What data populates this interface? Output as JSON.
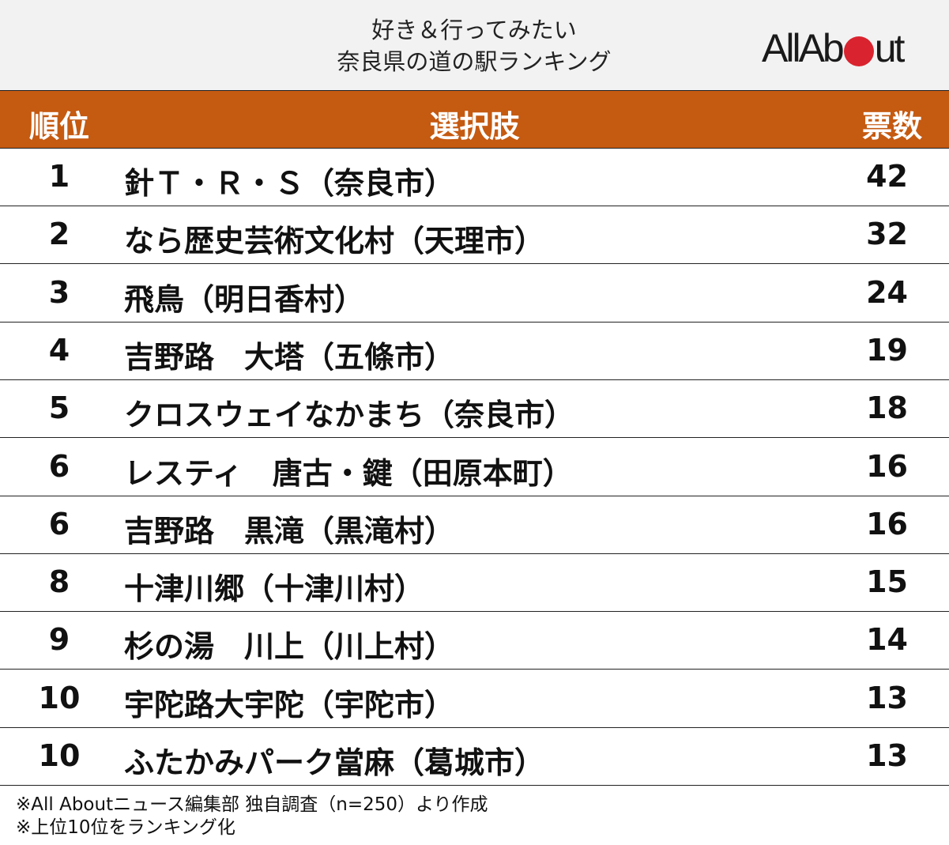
{
  "header": {
    "title_line1": "好き＆行ってみたい",
    "title_line2": "奈良県の道の駅ランキング",
    "logo": "All About"
  },
  "colors": {
    "header_bg": "#c55a11",
    "logo_dot": "#d9232e",
    "top_bg": "#f2f2f2"
  },
  "chart_data": {
    "type": "table",
    "columns": [
      "順位",
      "選択肢",
      "票数"
    ],
    "rows": [
      {
        "rank": "1",
        "name": "針Ｔ・Ｒ・Ｓ（奈良市）",
        "votes": "42"
      },
      {
        "rank": "2",
        "name": "なら歴史芸術文化村（天理市）",
        "votes": "32"
      },
      {
        "rank": "3",
        "name": "飛鳥（明日香村）",
        "votes": "24"
      },
      {
        "rank": "4",
        "name": "吉野路　大塔（五條市）",
        "votes": "19"
      },
      {
        "rank": "5",
        "name": "クロスウェイなかまち（奈良市）",
        "votes": "18"
      },
      {
        "rank": "6",
        "name": "レスティ　唐古・鍵（田原本町）",
        "votes": "16"
      },
      {
        "rank": "6",
        "name": "吉野路　黒滝（黒滝村）",
        "votes": "16"
      },
      {
        "rank": "8",
        "name": "十津川郷（十津川村）",
        "votes": "15"
      },
      {
        "rank": "9",
        "name": "杉の湯　川上（川上村）",
        "votes": "14"
      },
      {
        "rank": "10",
        "name": "宇陀路大宇陀（宇陀市）",
        "votes": "13"
      },
      {
        "rank": "10",
        "name": "ふたかみパーク當麻（葛城市）",
        "votes": "13"
      }
    ]
  },
  "notes": [
    "※All Aboutニュース編集部 独自調査（n=250）より作成",
    "※上位10位をランキング化"
  ]
}
